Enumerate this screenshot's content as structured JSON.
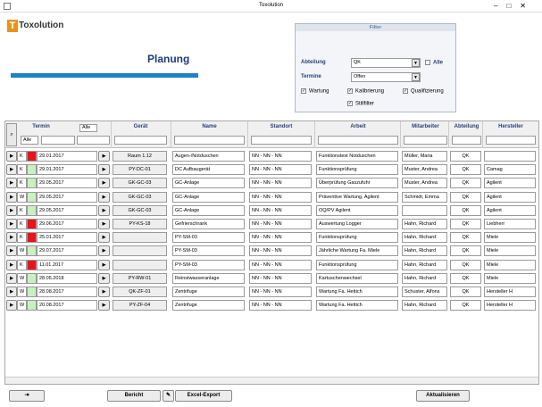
{
  "window": {
    "title": "Toxolution"
  },
  "header": {
    "logo": "Toxolution",
    "title": "Planung"
  },
  "filter": {
    "title": "Filter",
    "department_label": "Abteilung",
    "department_value": "QK",
    "all_label": "Alle",
    "dates_label": "Termine",
    "dates_value": "Offen",
    "checks": [
      "Wartung",
      "Kalibrierung",
      "Qualifizierung",
      "Stillfilter"
    ]
  },
  "table": {
    "columns": [
      "Termin",
      "Gerät",
      "Name",
      "Standort",
      "Arbeit",
      "Mitarbeiter",
      "Abteilung",
      "Hersteller"
    ],
    "termin_filter": "Alle",
    "type_filter": "Alle",
    "rows": [
      {
        "type": "K",
        "color": "#e8141c",
        "date": "29.01.2017",
        "device": "Raum 1.12",
        "name": "Augen-/Notduschen",
        "location": "NN - NN - NN",
        "work": "Funktionstest Notduschen",
        "employee": "Müller, Maria",
        "department": "QK",
        "manufacturer": ""
      },
      {
        "type": "K",
        "color": "#c8f0c0",
        "date": "29.01.2017",
        "device": "PY-DC-01",
        "name": "DC Aufbaugerät",
        "location": "NN - NN - NN",
        "work": "Funktionsprüfung",
        "employee": "Muster, Andrea",
        "department": "QK",
        "manufacturer": "Camag"
      },
      {
        "type": "K",
        "color": "#c8f0c0",
        "date": "29.05.2017",
        "device": "GK-GC-03",
        "name": "GC-Anlage",
        "location": "NN - NN - NN",
        "work": "Überprüfung Gaszufuhr",
        "employee": "Muster, Andrea",
        "department": "QK",
        "manufacturer": "Agilent"
      },
      {
        "type": "W",
        "color": "#c8f0c0",
        "date": "29.05.2017",
        "device": "GK-GC-03",
        "name": "GC-Anlage",
        "location": "NN - NN - NN",
        "work": "Präventive Wartung, Agilent",
        "employee": "Schmidt, Emma",
        "department": "QK",
        "manufacturer": "Agilent"
      },
      {
        "type": "K",
        "color": "#c8f0c0",
        "date": "29.05.2017",
        "device": "GK-GC-03",
        "name": "GC-Anlage",
        "location": "NN - NN - NN",
        "work": "OQ/PV Agilent",
        "employee": "",
        "department": "QK",
        "manufacturer": "Agilent"
      },
      {
        "type": "K",
        "color": "#e8141c",
        "date": "29.06.2017",
        "device": "PY-KS-18",
        "name": "Gefrierschrank",
        "location": "NN - NN - NN",
        "work": "Auswertung Logger",
        "employee": "Hahn, Richard",
        "department": "QK",
        "manufacturer": "Liebherr"
      },
      {
        "type": "K",
        "color": "#e8141c",
        "date": "25.01.2017",
        "device": "",
        "name": "PY-SM-03",
        "location": "NN - NN - NN",
        "work": "Funktionsprüfung",
        "employee": "Hahn, Richard",
        "department": "QK",
        "manufacturer": "Miele"
      },
      {
        "type": "W",
        "color": "#c8f0c0",
        "date": "29.07.2017",
        "device": "",
        "name": "PY-SM-03",
        "location": "NN - NN - NN",
        "work": "Jährliche Wartung Fa. Miele",
        "employee": "Hahn, Richard",
        "department": "QK",
        "manufacturer": "Miele"
      },
      {
        "type": "K",
        "color": "#e8141c",
        "date": "11.01.2017",
        "device": "",
        "name": "PY-SM-03",
        "location": "NN - NN - NN",
        "work": "Funktionsprüfung",
        "employee": "Hahn, Richard",
        "department": "QK",
        "manufacturer": "Miele"
      },
      {
        "type": "W",
        "color": "#c8f0c0",
        "date": "28.05.2018",
        "device": "PY-RW-01",
        "name": "Reinstwasseranlage",
        "location": "NN - NN - NN",
        "work": "Kartuschenwechsel",
        "employee": "Hahn, Richard",
        "department": "QK",
        "manufacturer": "Miele"
      },
      {
        "type": "W",
        "color": "#c8f0c0",
        "date": "28.08.2017",
        "device": "QK-ZF-01",
        "name": "Zentrifuge",
        "location": "NN - NN - NN",
        "work": "Wartung Fa. Hettich",
        "employee": "Schuster, Alfons",
        "department": "QK",
        "manufacturer": "Hersteller H"
      },
      {
        "type": "W",
        "color": "#c8f0c0",
        "date": "20.08.2017",
        "device": "PY-ZF-04",
        "name": "Zentrifuge",
        "location": "NN - NN - NN",
        "work": "Wartung Fa. Hettich",
        "employee": "Hahn, Richard",
        "department": "QK",
        "manufacturer": "Hersteller H"
      }
    ]
  },
  "buttons": {
    "report": "Bericht",
    "export": "Excel-Export",
    "refresh": "Aktualisieren"
  }
}
